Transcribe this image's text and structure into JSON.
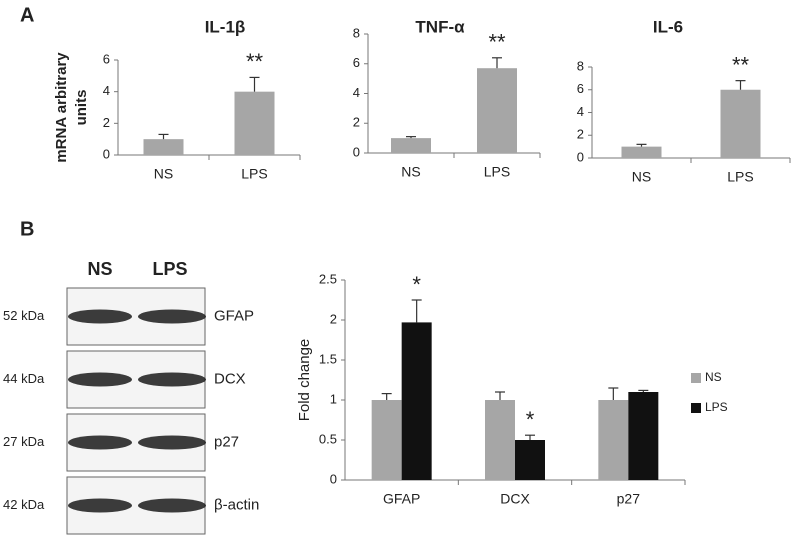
{
  "panel_labels": [
    "A",
    "B"
  ],
  "chart_data": [
    {
      "type": "bar",
      "title": "IL-1β",
      "ylabel": [
        "mRNA arbitrary",
        "units"
      ],
      "categories": [
        "NS",
        "LPS"
      ],
      "values": [
        1,
        4
      ],
      "errors": [
        0.3,
        0.9
      ],
      "color": "#a6a6a6",
      "ylim": [
        0,
        6
      ],
      "yticks": [
        0,
        2,
        4,
        6
      ],
      "annotations": [
        {
          "text": "**",
          "category": "LPS"
        }
      ]
    },
    {
      "type": "bar",
      "title": "TNF-α",
      "categories": [
        "NS",
        "LPS"
      ],
      "values": [
        1,
        5.7
      ],
      "errors": [
        0.1,
        0.7
      ],
      "color": "#a6a6a6",
      "ylim": [
        0,
        8
      ],
      "yticks": [
        0,
        2,
        4,
        6,
        8
      ],
      "annotations": [
        {
          "text": "**",
          "category": "LPS"
        }
      ]
    },
    {
      "type": "bar",
      "title": "IL-6",
      "categories": [
        "NS",
        "LPS"
      ],
      "values": [
        1,
        6
      ],
      "errors": [
        0.2,
        0.8
      ],
      "color": "#a6a6a6",
      "ylim": [
        0,
        8
      ],
      "yticks": [
        0,
        2,
        4,
        6,
        8
      ],
      "annotations": [
        {
          "text": "**",
          "category": "LPS"
        }
      ]
    },
    {
      "type": "bar",
      "ylabel": [
        "Fold change"
      ],
      "categories": [
        "GFAP",
        "DCX",
        "p27"
      ],
      "series": [
        {
          "name": "NS",
          "color": "#a6a6a6",
          "values": [
            1,
            1,
            1
          ],
          "errors": [
            0.08,
            0.1,
            0.15
          ]
        },
        {
          "name": "LPS",
          "color": "#111111",
          "values": [
            1.97,
            0.5,
            1.1
          ],
          "errors": [
            0.28,
            0.06,
            0.02
          ]
        }
      ],
      "ylim": [
        0,
        2.5
      ],
      "yticks": [
        0,
        0.5,
        1,
        1.5,
        2,
        2.5
      ],
      "legend": "right",
      "annotations": [
        {
          "text": "*",
          "series": "LPS",
          "category": "GFAP"
        },
        {
          "text": "*",
          "series": "LPS",
          "category": "DCX"
        }
      ]
    }
  ],
  "blot": {
    "lanes": [
      "NS",
      "LPS"
    ],
    "rows": [
      {
        "size": "52 kDa",
        "protein": "GFAP"
      },
      {
        "size": "44 kDa",
        "protein": "DCX"
      },
      {
        "size": "27 kDa",
        "protein": "p27"
      },
      {
        "size": "42 kDa",
        "protein": "β-actin"
      }
    ]
  }
}
